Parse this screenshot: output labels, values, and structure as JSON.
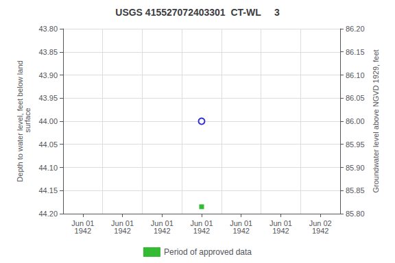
{
  "chart_data": {
    "type": "scatter",
    "title": "USGS 415527072403301  CT-WL     3",
    "y_label": "Depth to water level, feet below land\n surface",
    "y2_label": "Groundwater level above NGVD 1929, feet",
    "categories": [
      "Jun 01\n1942",
      "Jun 01\n1942",
      "Jun 01\n1942",
      "Jun 01\n1942",
      "Jun 01\n1942",
      "Jun 01\n1942",
      "Jun 02\n1942"
    ],
    "series": [
      {
        "values": [
          null,
          null,
          null,
          44.0,
          null,
          null,
          null
        ],
        "color": "#0000cc",
        "marker": "open_circle"
      },
      {
        "name": "Period of approved data",
        "values": [
          null,
          null,
          null,
          44.185,
          null,
          null,
          null
        ],
        "color": "#00aa00",
        "marker": "square"
      }
    ],
    "ylim": [
      44.2,
      43.8
    ],
    "yticks": [
      {
        "value": 43.8,
        "label": "43.80"
      },
      {
        "value": 43.85,
        "label": "43.85"
      },
      {
        "value": 43.9,
        "label": "43.90"
      },
      {
        "value": 43.95,
        "label": "43.95"
      },
      {
        "value": 44.0,
        "label": "44.00"
      },
      {
        "value": 44.05,
        "label": "44.05"
      },
      {
        "value": 44.1,
        "label": "44.10"
      },
      {
        "value": 44.15,
        "label": "44.15"
      },
      {
        "value": 44.2,
        "label": "44.20"
      }
    ],
    "y2lim": [
      85.8,
      86.2
    ],
    "y2ticks": [
      {
        "value": 86.2,
        "label": "86.20"
      },
      {
        "value": 86.15,
        "label": "86.15"
      },
      {
        "value": 86.1,
        "label": "86.10"
      },
      {
        "value": 86.05,
        "label": "86.05"
      },
      {
        "value": 86.0,
        "label": "86.00"
      },
      {
        "value": 85.95,
        "label": "85.95"
      },
      {
        "value": 85.9,
        "label": "85.90"
      },
      {
        "value": 85.85,
        "label": "85.85"
      },
      {
        "value": 85.8,
        "label": "85.80"
      }
    ],
    "grid": true,
    "legend": "bottom"
  }
}
